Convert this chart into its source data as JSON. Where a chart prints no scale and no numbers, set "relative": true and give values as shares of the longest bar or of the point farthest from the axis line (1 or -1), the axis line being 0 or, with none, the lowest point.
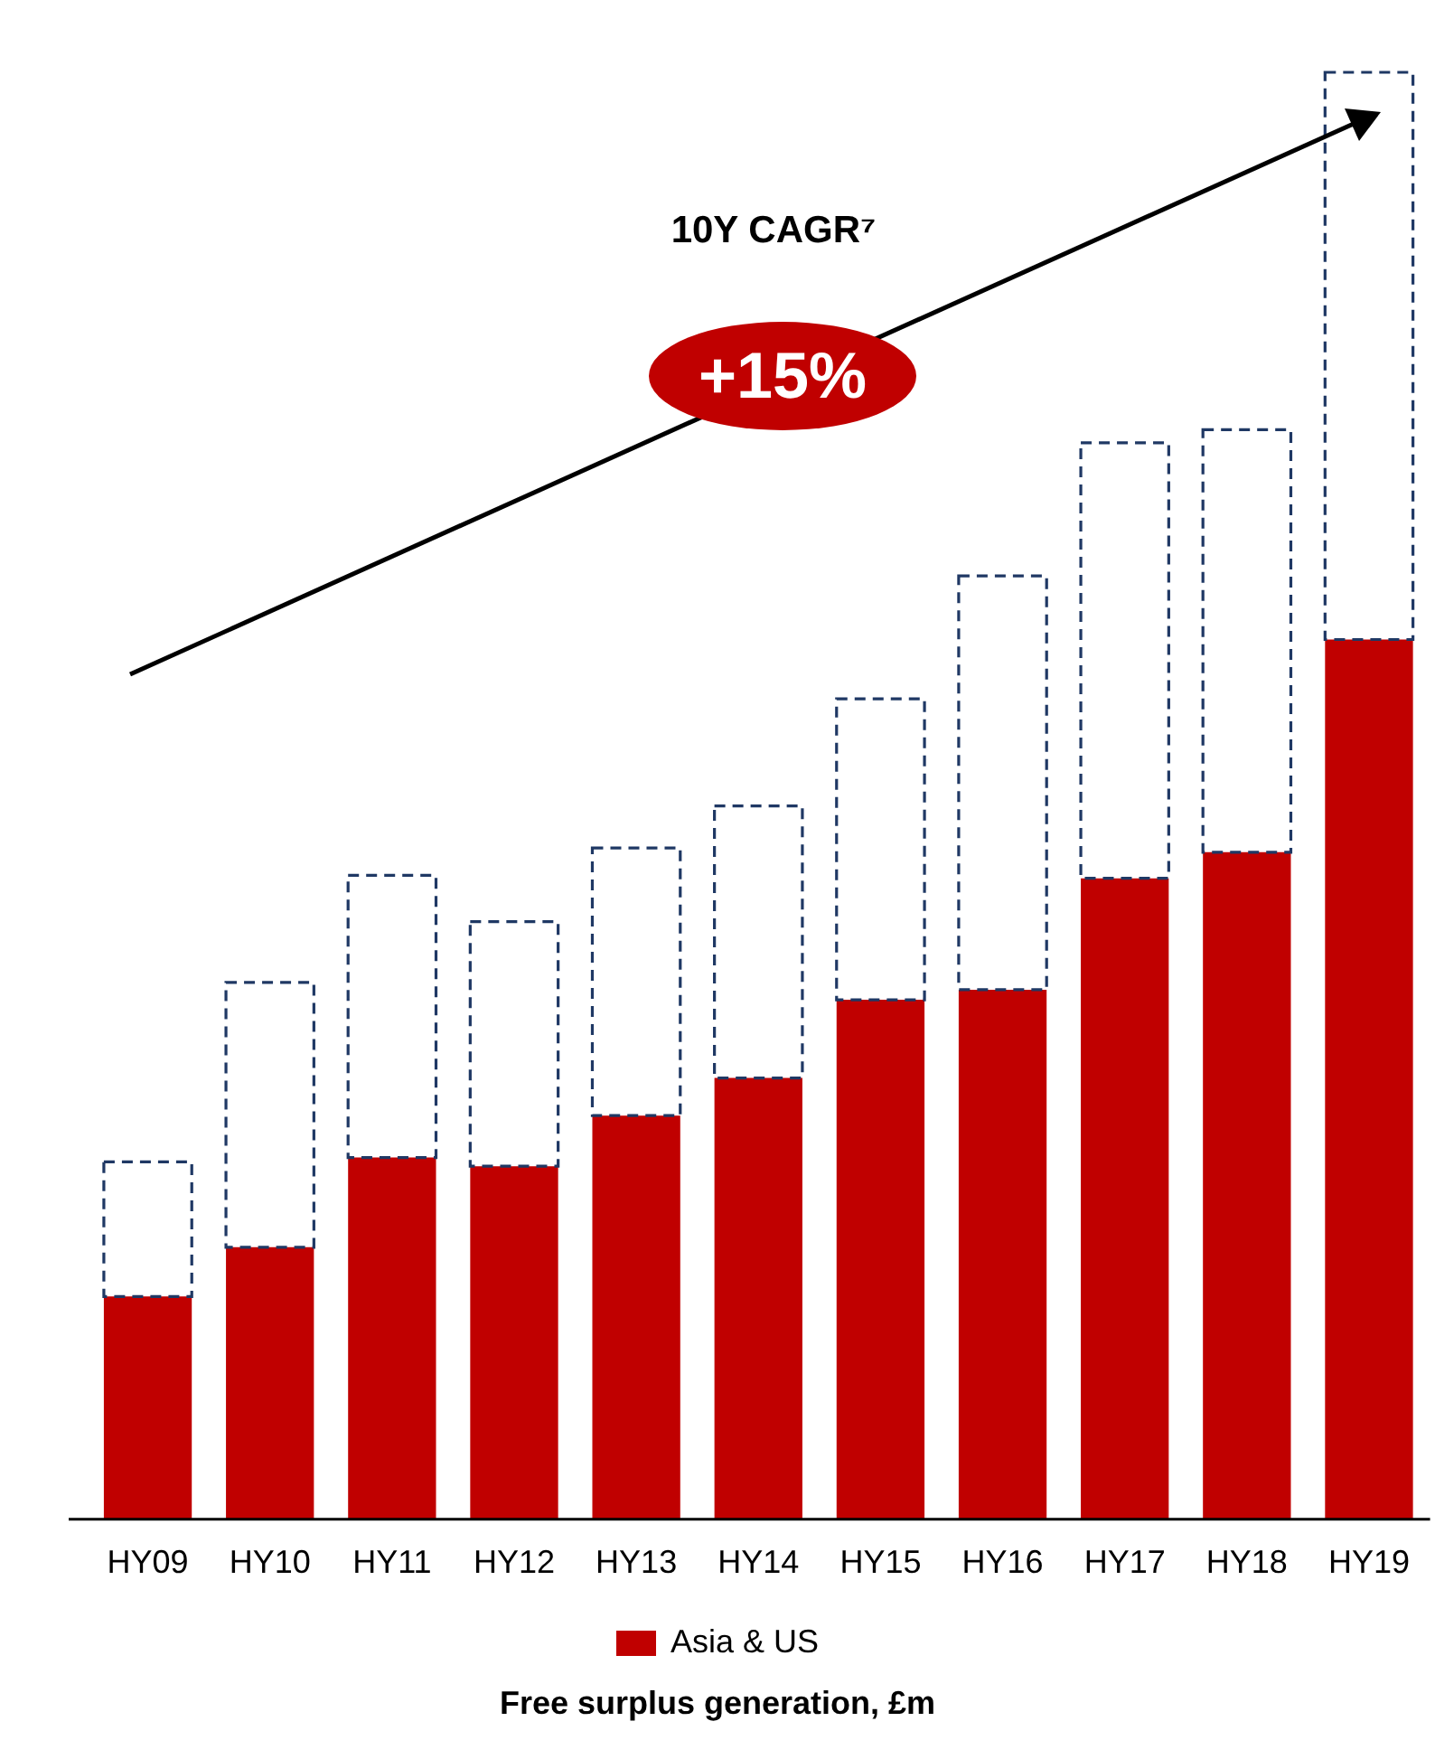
{
  "chart_data": {
    "type": "bar",
    "stacked": true,
    "relative": true,
    "categories": [
      "HY09",
      "HY10",
      "HY11",
      "HY12",
      "HY13",
      "HY14",
      "HY15",
      "HY16",
      "HY17",
      "HY18",
      "HY19"
    ],
    "series": [
      {
        "name": "Asia & US",
        "color": "#c00000",
        "values": [
          0.154,
          0.188,
          0.25,
          0.244,
          0.279,
          0.305,
          0.359,
          0.366,
          0.443,
          0.461,
          0.608
        ]
      },
      {
        "color": "#1f3864",
        "line_style": "dashed",
        "values": [
          0.093,
          0.183,
          0.195,
          0.169,
          0.185,
          0.188,
          0.208,
          0.286,
          0.301,
          0.292,
          0.392
        ]
      }
    ],
    "xlabel": "Free surplus generation, £m",
    "annotations": [
      "10Y CAGR⁷",
      "+15%"
    ],
    "legend": "bottom",
    "grid": false
  }
}
